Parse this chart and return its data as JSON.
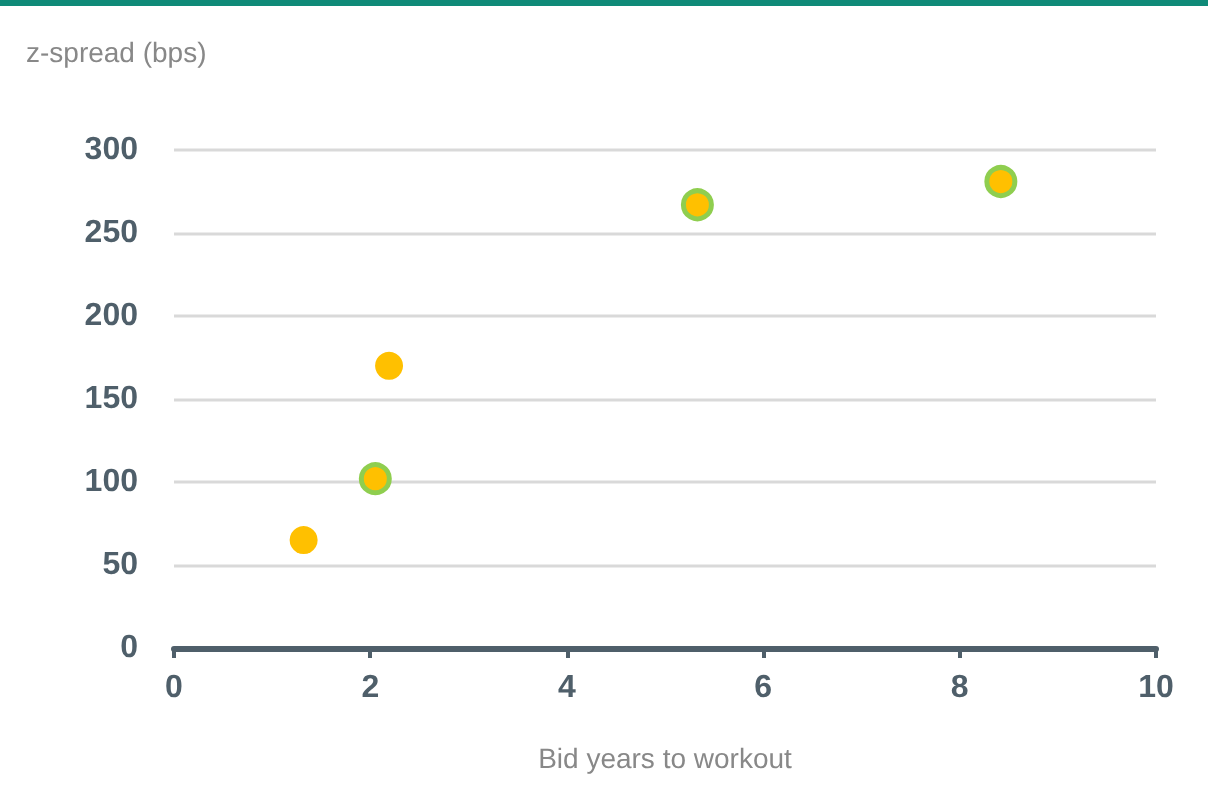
{
  "chart_data": {
    "type": "scatter",
    "ylabel": "z-spread (bps)",
    "xlabel": "Bid years to workout",
    "series": [
      {
        "color": "#ffc000",
        "x": [
          1.32,
          2.19
        ],
        "values": [
          65,
          170
        ]
      },
      {
        "color": "#ffc000",
        "x": [
          2.05,
          5.33,
          8.42
        ],
        "values": [
          102,
          267,
          281
        ]
      }
    ],
    "xlim": [
      0,
      10
    ],
    "xticks": [
      0,
      2,
      4,
      6,
      8,
      10
    ],
    "ylim": [
      0,
      300
    ],
    "yticks": [
      0,
      50,
      100,
      150,
      200,
      250,
      300
    ],
    "grid": "y",
    "marker": "circle"
  }
}
